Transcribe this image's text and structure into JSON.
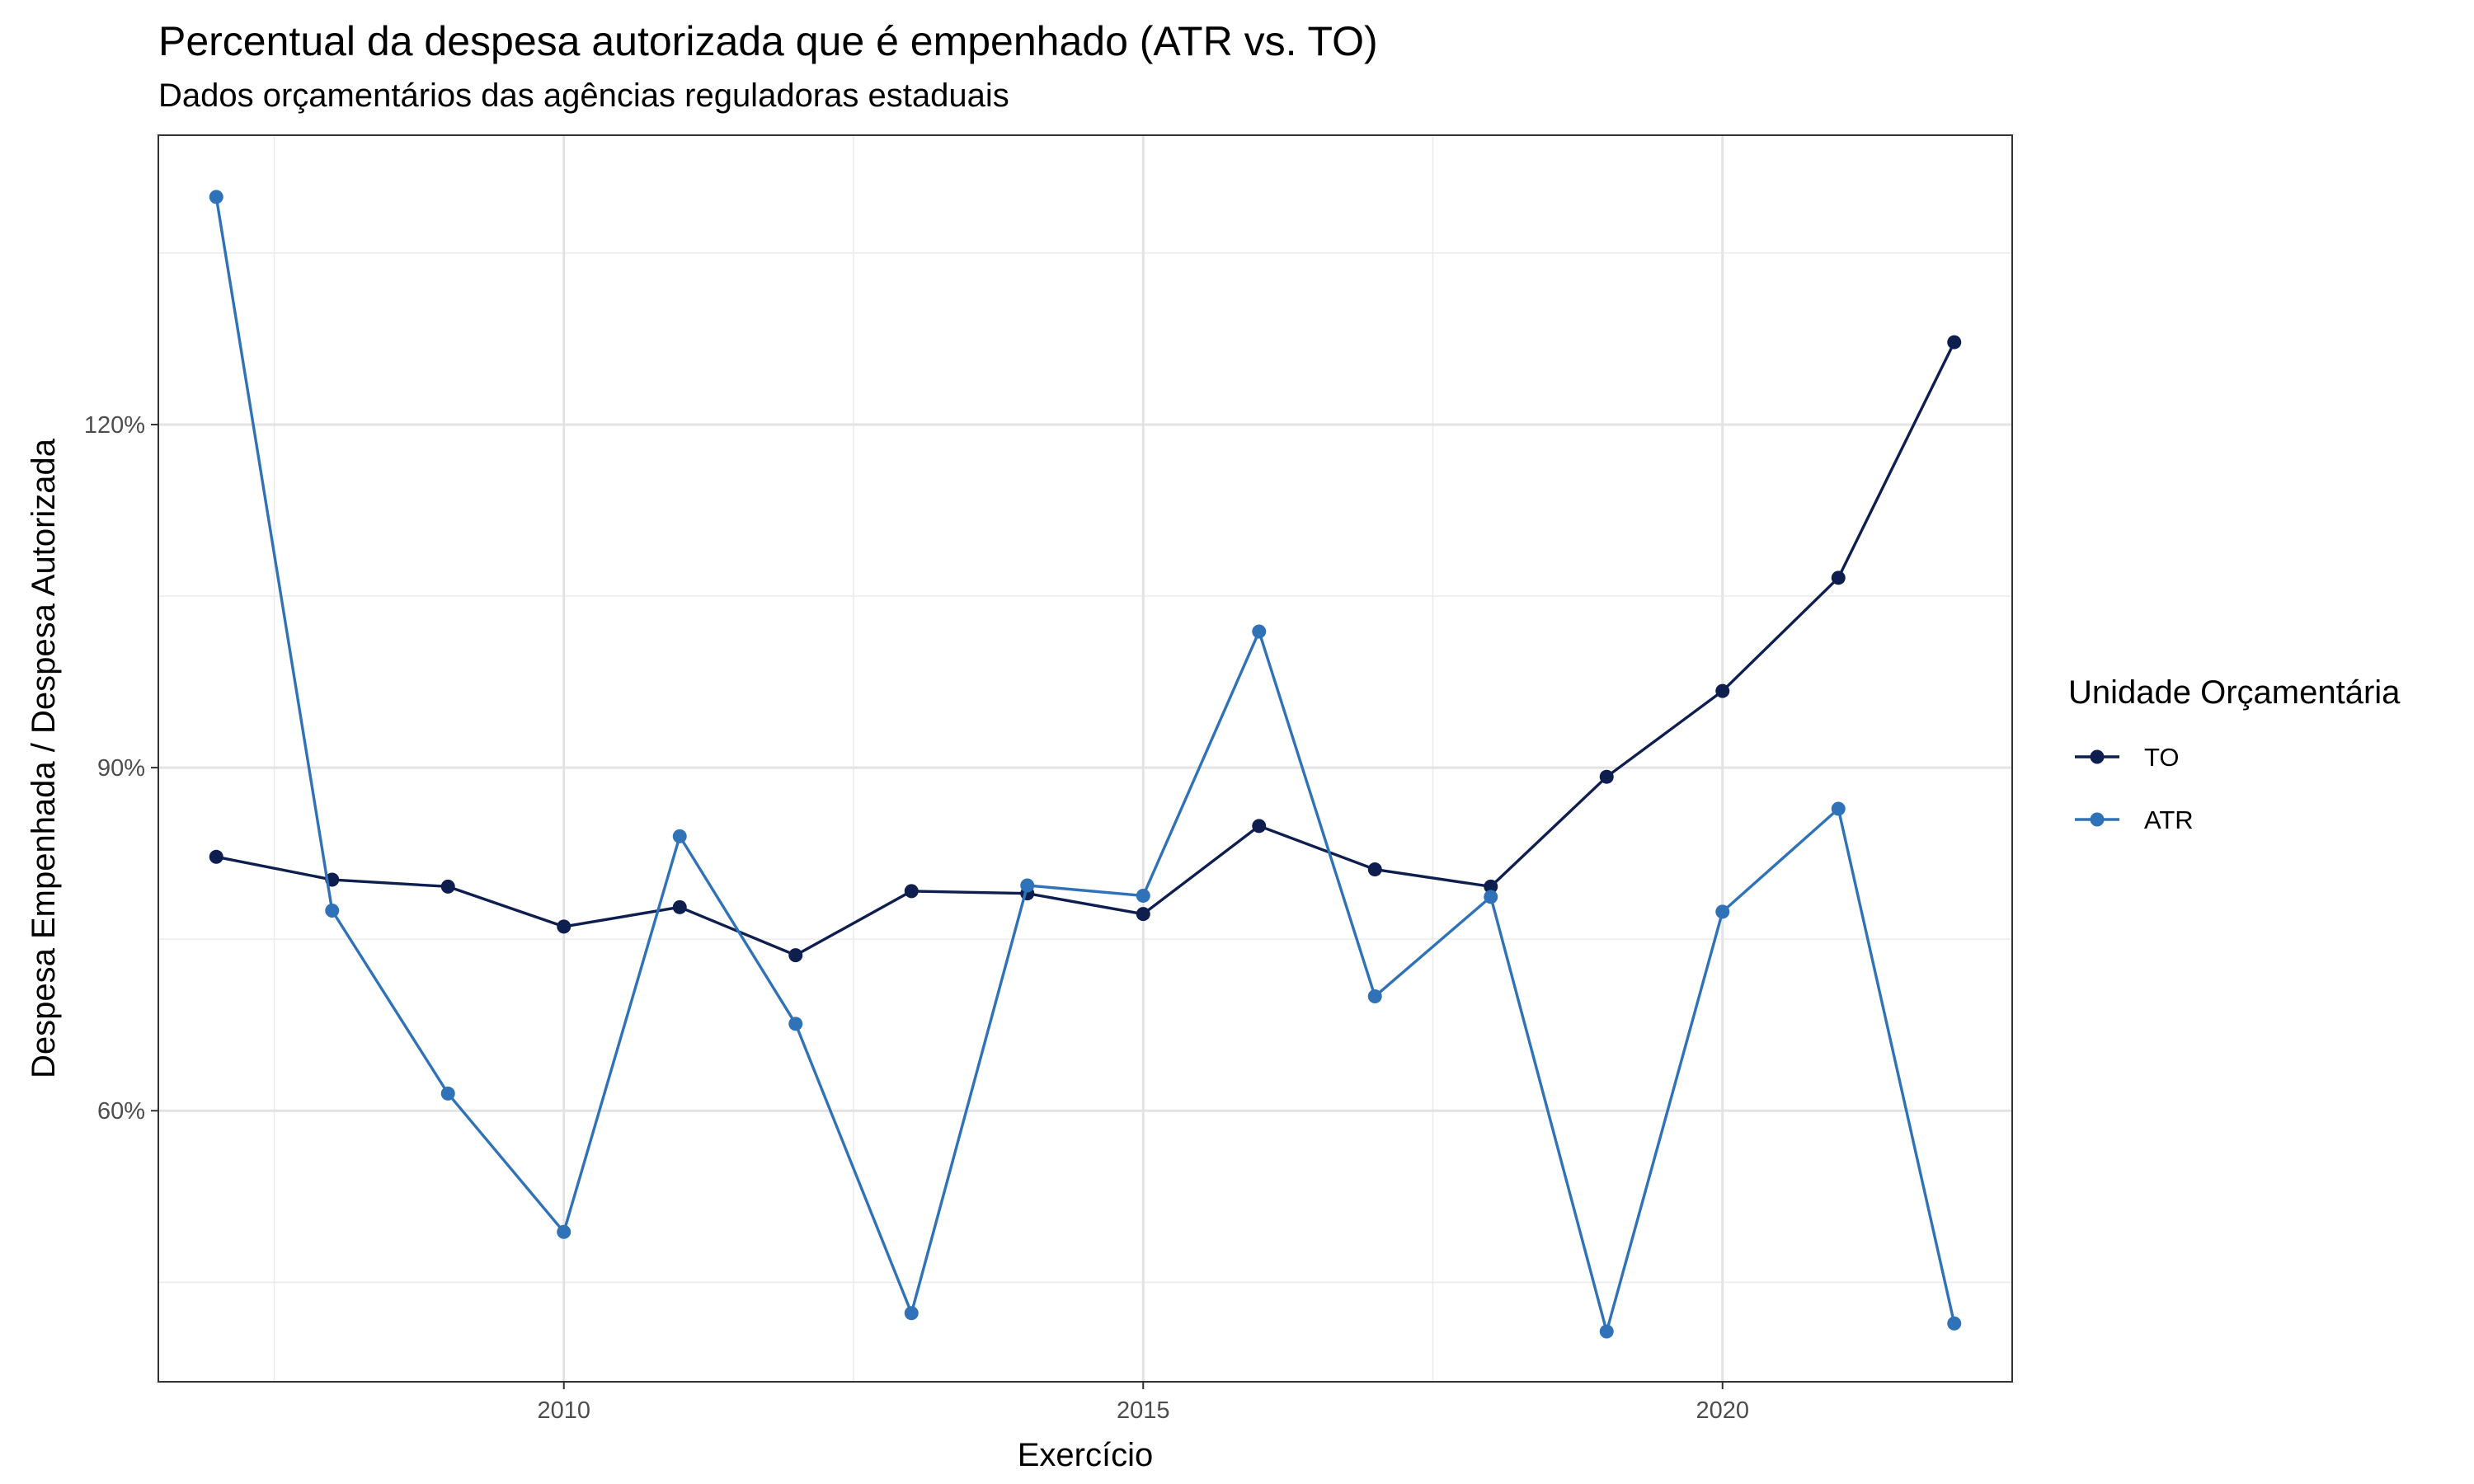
{
  "header": {
    "title": "Percentual da despesa autorizada que é empenhado (ATR vs. TO)",
    "subtitle": "Dados orçamentários das agências reguladoras estaduais"
  },
  "chart_data": {
    "type": "line",
    "title": "Percentual da despesa autorizada que é empenhado (ATR vs. TO)",
    "subtitle": "Dados orçamentários das agências reguladoras estaduais",
    "xlabel": "Exercício",
    "ylabel": "Despesa Empenhada / Despesa Autorizada",
    "x": [
      2007,
      2008,
      2009,
      2010,
      2011,
      2012,
      2013,
      2014,
      2015,
      2016,
      2017,
      2018,
      2019,
      2020,
      2021,
      2022
    ],
    "series": [
      {
        "name": "TO",
        "color": "#0d1e4f",
        "values": [
          0.822,
          0.802,
          0.796,
          0.761,
          0.778,
          0.736,
          0.792,
          0.79,
          0.772,
          0.849,
          0.811,
          0.796,
          0.892,
          0.967,
          1.066,
          1.272
        ]
      },
      {
        "name": "ATR",
        "color": "#3072b8",
        "values": [
          1.399,
          0.775,
          0.615,
          0.494,
          0.84,
          0.676,
          0.423,
          0.797,
          0.788,
          1.019,
          0.7,
          0.787,
          0.407,
          0.774,
          0.864,
          0.414
        ]
      }
    ],
    "xlim": [
      2006.5,
      2022.5
    ],
    "ylim": [
      0.363,
      1.453
    ],
    "x_ticks": [
      2010,
      2015,
      2020
    ],
    "x_tick_labels": [
      "2010",
      "2015",
      "2020"
    ],
    "y_ticks": [
      0.6,
      0.9,
      1.2
    ],
    "y_tick_labels": [
      "60%",
      "90%",
      "120%"
    ],
    "grid": true,
    "legend": {
      "title": "Unidade Orçamentária",
      "position": "right",
      "entries": [
        "TO",
        "ATR"
      ]
    }
  }
}
